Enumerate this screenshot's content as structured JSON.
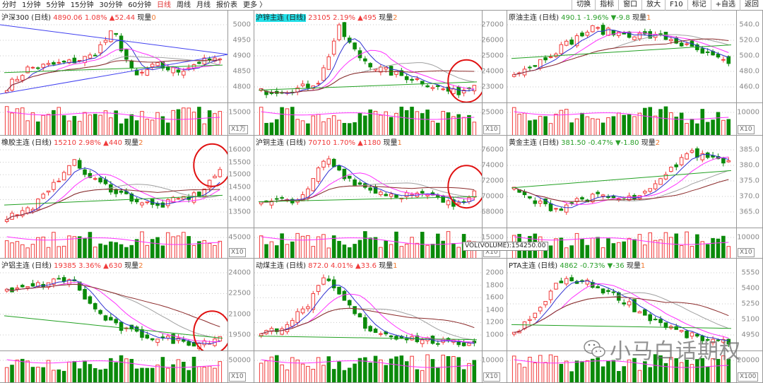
{
  "toolbar": {
    "tabs": [
      "分时",
      "1分钟",
      "5分钟",
      "15分钟",
      "30分钟",
      "60分钟",
      "日线",
      "周线",
      "月线",
      "报价表",
      "更多 〉"
    ],
    "active_tab": "日线",
    "buttons": [
      "切换",
      "指标",
      "窗口",
      "放大",
      "F10",
      "标记",
      "+自选",
      "返回"
    ]
  },
  "colors": {
    "up": "#f03a3a",
    "down": "#0a8a0a",
    "ma5": "#3030d0",
    "ma10": "#ff30ff",
    "ma20": "#a0a0a0",
    "ma40": "#8b2a2a",
    "ma60": "#22a022",
    "circle": "#e01010"
  },
  "panels": [
    {
      "name": "沪深300 (日线)",
      "price": "4890.06",
      "pct": "1.08%",
      "arrow": "▲",
      "change": "52.44",
      "qty_label": "现量",
      "qty": "0",
      "dir": "up",
      "ticks": [
        5000,
        4950,
        4900,
        4850,
        4800
      ],
      "vol_tick": "15000",
      "vol_mult": "X1万",
      "trend": [
        4800,
        4860,
        4870,
        4880,
        4900,
        4980,
        4830,
        4870,
        4850,
        4880,
        4890
      ],
      "circled": false,
      "trendlines": true
    },
    {
      "name": "沪锌主连 (日线)",
      "price": "23105",
      "pct": "2.19%",
      "arrow": "▲",
      "change": "495",
      "qty_label": "现量",
      "qty": "2",
      "dir": "up",
      "selected": true,
      "ticks": [
        27000,
        26000,
        25000,
        24000,
        23000
      ],
      "vol_tick": "25000",
      "vol_mult": "X10",
      "trend": [
        22700,
        22800,
        22900,
        23400,
        26800,
        25000,
        24200,
        23800,
        23500,
        23000,
        22600,
        23105
      ],
      "circled": true
    },
    {
      "name": "原油主连 (日线)",
      "price": "490.1",
      "pct": "-1.96%",
      "arrow": "▼",
      "change": "-9.8",
      "qty_label": "现量",
      "qty": "1",
      "dir": "dn",
      "ticks": [
        540.0,
        520.0,
        500.0,
        480.0,
        460.0
      ],
      "tick_fmt": 1,
      "vol_tick": "10000",
      "vol_mult": "X10",
      "trend": [
        480,
        488,
        505,
        520,
        535,
        530,
        528,
        525,
        522,
        510,
        500,
        490.1
      ],
      "circled": false
    },
    {
      "name": "橡胶主连 (日线)",
      "price": "15210",
      "pct": "2.98%",
      "arrow": "▲",
      "change": "440",
      "qty_label": "现量",
      "qty": "2",
      "dir": "up",
      "ticks": [
        16000,
        15500,
        15000,
        14500,
        14000,
        13500
      ],
      "vol_tick": "45000",
      "vol_mult": "X10",
      "trend": [
        13300,
        13600,
        14300,
        15600,
        14800,
        14400,
        14000,
        13700,
        14000,
        14200,
        15210
      ],
      "circled": true
    },
    {
      "name": "沪铜主连 (日线)",
      "price": "70710",
      "pct": "1.70%",
      "arrow": "▲",
      "change": "1180",
      "qty_label": "现量",
      "qty": "1",
      "dir": "up",
      "ticks": [
        76000,
        74000,
        72000,
        70000,
        68000
      ],
      "vol_tick": "15000",
      "vol_mult": "X10",
      "trend": [
        69000,
        69500,
        69800,
        75000,
        72500,
        71000,
        70300,
        70200,
        70000,
        68800,
        70710
      ],
      "circled": true
    },
    {
      "name": "黄金主连 (日线)",
      "price": "381.50",
      "pct": "-0.47%",
      "arrow": "▼",
      "change": "-1.80",
      "qty_label": "现量",
      "qty": "2",
      "dir": "dn",
      "ticks": [
        385.0,
        380.0,
        375.0,
        370.0,
        365.0
      ],
      "tick_fmt": 1,
      "vol_tick": "10000",
      "vol_mult": "X10",
      "trend": [
        372,
        368,
        366,
        369,
        370,
        369,
        370,
        376,
        384,
        383,
        381.5
      ],
      "circled": false
    },
    {
      "name": "沪铝主连 (日线)",
      "price": "19385",
      "pct": "3.36%",
      "arrow": "▲",
      "change": "630",
      "qty_label": "现量",
      "qty": "2",
      "dir": "up",
      "ticks": [
        24000,
        22500,
        21000,
        19500
      ],
      "vol_tick": "50000",
      "vol_mult": "X10",
      "trend": [
        22600,
        22900,
        23300,
        23600,
        21500,
        20200,
        19600,
        19300,
        19100,
        18900,
        19385
      ],
      "circled": true
    },
    {
      "name": "动煤主连 (日线)",
      "price": "872.0",
      "pct": "4.01%",
      "arrow": "▲",
      "change": "33.6",
      "qty_label": "现量",
      "qty": "1",
      "dir": "up",
      "ticks": [
        2000,
        1800,
        1600,
        1400,
        1200,
        1000
      ],
      "vol_tick": "10000",
      "vol_mult": "X10",
      "trend": [
        1000,
        1150,
        1400,
        1900,
        1500,
        1100,
        1000,
        950,
        900,
        860,
        872
      ],
      "circled": false
    },
    {
      "name": "PTA主连 (日线)",
      "price": "4862",
      "pct": "-0.73%",
      "arrow": "▼",
      "change": "-36",
      "qty_label": "现量",
      "qty": "1",
      "dir": "dn",
      "ticks": [
        5550,
        5400,
        5250,
        5100,
        4950
      ],
      "vol_tick": "20000",
      "vol_mult": "X100",
      "trend": [
        4950,
        5150,
        5450,
        5480,
        5400,
        5300,
        5150,
        5050,
        4950,
        4900,
        4862
      ],
      "circled": false
    }
  ],
  "tooltip": "VOL(VOLUME):154250.00",
  "watermark": "小马白话期权"
}
